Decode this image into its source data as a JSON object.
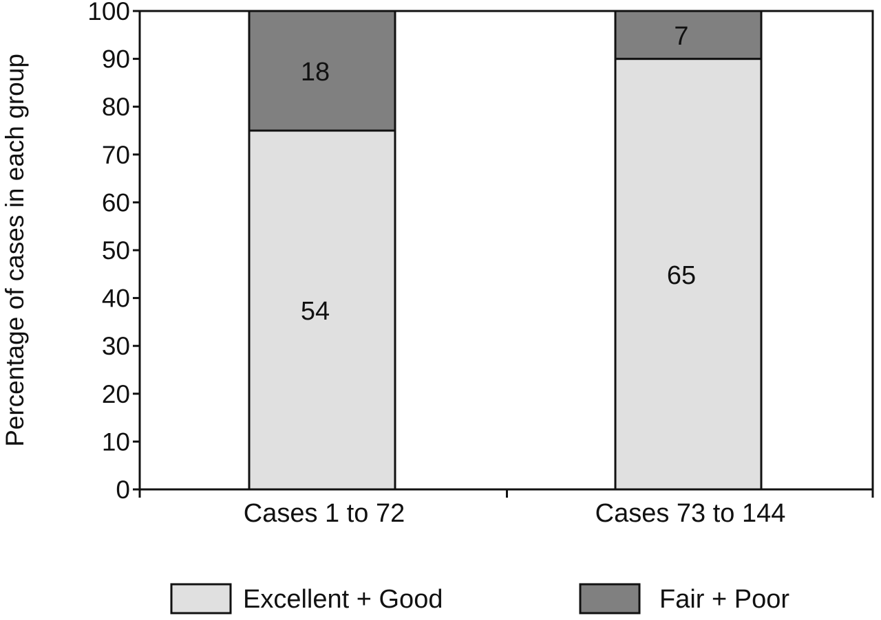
{
  "chart_data": {
    "type": "bar",
    "stacked": true,
    "categories": [
      "Cases 1 to 72",
      "Cases 73 to 144"
    ],
    "series": [
      {
        "name": "Excellent + Good",
        "values": [
          75,
          90
        ],
        "labels": [
          "54",
          "65"
        ],
        "color": "#e0e0e0"
      },
      {
        "name": "Fair + Poor",
        "values": [
          25,
          10
        ],
        "labels": [
          "18",
          "7"
        ],
        "color": "#808080"
      }
    ],
    "title": "",
    "xlabel": "",
    "ylabel": "Percentage of cases in each group",
    "ylim": [
      0,
      100
    ],
    "yticks": [
      0,
      10,
      20,
      30,
      40,
      50,
      60,
      70,
      80,
      90,
      100
    ],
    "grid": false,
    "legend_position": "bottom"
  }
}
